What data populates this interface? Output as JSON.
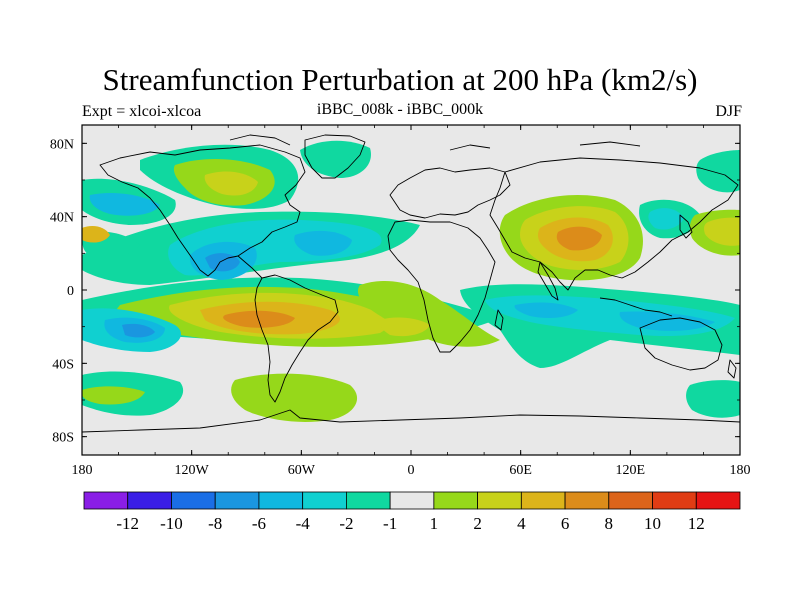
{
  "chart_data": {
    "type": "map-contour",
    "title": "Streamfunction Perturbation at 200 hPa (km2/s)",
    "left_string": "Expt = xlcoi-xlcoa",
    "center_string": "iBBC_008k - iBBC_000k",
    "right_string": "DJF",
    "lon_range": [
      -180,
      180
    ],
    "lat_range": [
      -90,
      90
    ],
    "x_ticks": [
      {
        "value": -180,
        "label": "180"
      },
      {
        "value": -120,
        "label": "120W"
      },
      {
        "value": -60,
        "label": "60W"
      },
      {
        "value": 0,
        "label": "0"
      },
      {
        "value": 60,
        "label": "60E"
      },
      {
        "value": 120,
        "label": "120E"
      },
      {
        "value": 180,
        "label": "180"
      }
    ],
    "y_ticks": [
      {
        "value": 80,
        "label": "80N"
      },
      {
        "value": 40,
        "label": "40N"
      },
      {
        "value": 0,
        "label": "0"
      },
      {
        "value": -40,
        "label": "40S"
      },
      {
        "value": -80,
        "label": "80S"
      }
    ],
    "colorbar": {
      "labels": [
        "-12",
        "-10",
        "-8",
        "-6",
        "-4",
        "-2",
        "-1",
        "1",
        "2",
        "4",
        "6",
        "8",
        "10",
        "12"
      ],
      "colors": [
        "#8a1ee6",
        "#3a1ee6",
        "#1a6ee6",
        "#1a96e0",
        "#10b8e0",
        "#10d0d0",
        "#10d8a0",
        "#e8e8e8",
        "#96d81a",
        "#c8d21a",
        "#dcb41a",
        "#dc8c1a",
        "#dc641a",
        "#e03c14",
        "#e61414"
      ]
    },
    "features": [
      {
        "name": "E Asia / Tibetan high positive anomaly",
        "center": [
          95,
          28
        ],
        "value": 8
      },
      {
        "name": "S Pacific positive anomaly",
        "center": [
          -95,
          -20
        ],
        "value": 8
      },
      {
        "name": "Tropical E Pacific negative anomaly",
        "center": [
          -105,
          12
        ],
        "value": -6
      },
      {
        "name": "Gulf of Mexico/Caribbean negative anomaly",
        "center": [
          -45,
          25
        ],
        "value": -6
      },
      {
        "name": "Subtropical S Pacific negative anomaly",
        "center": [
          -140,
          -25
        ],
        "value": -6
      },
      {
        "name": "Indian Ocean / Maritime negative band",
        "center": [
          80,
          -15
        ],
        "value": -4
      },
      {
        "name": "N Pacific negative anomaly",
        "center": [
          -165,
          40
        ],
        "value": -4
      },
      {
        "name": "Alaska/Canada positive anomaly",
        "center": [
          -100,
          60
        ],
        "value": 2
      },
      {
        "name": "S Atlantic positive anomaly",
        "center": [
          0,
          -20
        ],
        "value": 2
      },
      {
        "name": "Southern Ocean positive anomaly",
        "center": [
          -60,
          -65
        ],
        "value": 1
      },
      {
        "name": "NE Asia negative anomaly",
        "center": [
          128,
          45
        ],
        "value": -2
      },
      {
        "name": "NW Pacific positive anomaly",
        "center": [
          165,
          35
        ],
        "value": 4
      }
    ]
  }
}
